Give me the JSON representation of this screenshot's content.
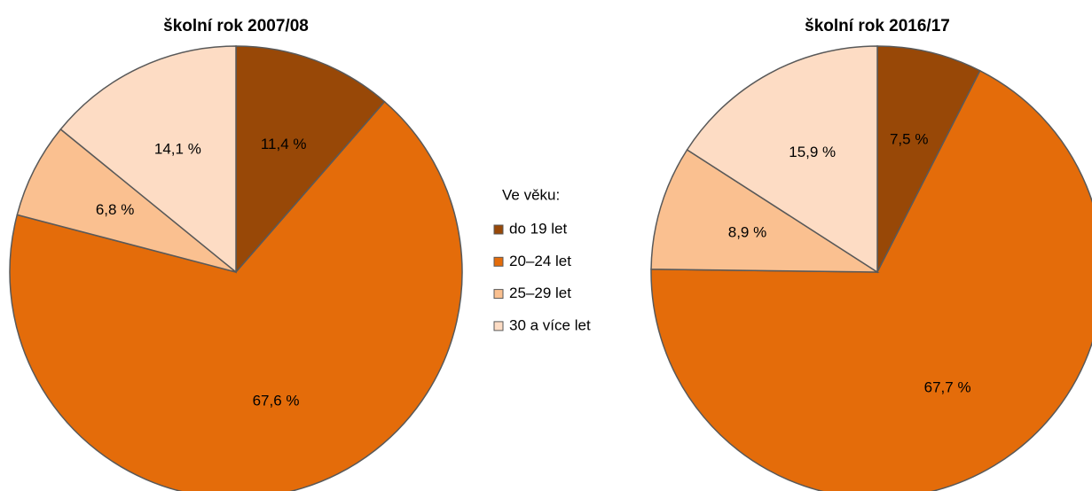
{
  "chart_data": [
    {
      "type": "pie",
      "title": "školní rok 2007/08",
      "legend_title": "Ve věku:",
      "categories": [
        "do 19 let",
        "20–24 let",
        "25–29 let",
        "30 a více let"
      ],
      "values": [
        11.4,
        67.6,
        6.8,
        14.1
      ],
      "value_labels": [
        "11,4 %",
        "67,6 %",
        "6,8 %",
        "14,1 %"
      ],
      "colors": [
        "#984807",
        "#e46c0a",
        "#fac090",
        "#fddcc4"
      ]
    },
    {
      "type": "pie",
      "title": "školní rok 2016/17",
      "categories": [
        "do 19 let",
        "20–24 let",
        "25–29 let",
        "30 a více let"
      ],
      "values": [
        7.5,
        67.7,
        8.9,
        15.9
      ],
      "value_labels": [
        "7,5 %",
        "67,7 %",
        "8,9 %",
        "15,9 %"
      ],
      "colors": [
        "#984807",
        "#e46c0a",
        "#fac090",
        "#fddcc4"
      ]
    }
  ]
}
